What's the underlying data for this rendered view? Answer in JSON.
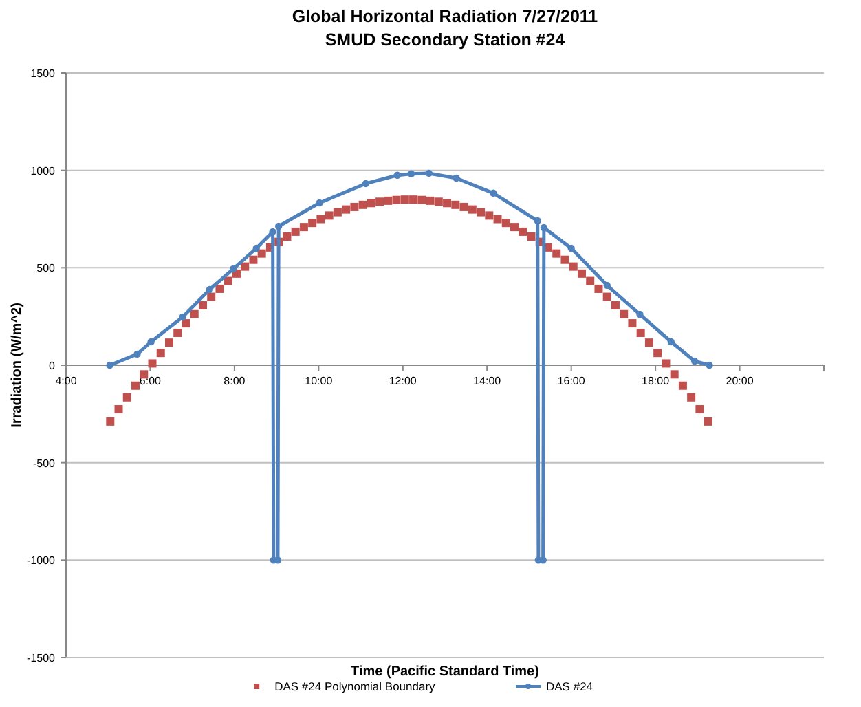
{
  "chart_data": {
    "type": "line",
    "title": "Global Horizontal Radiation 7/27/2011",
    "subtitle": "SMUD Secondary Station #24",
    "xlabel": "Time (Pacific Standard Time)",
    "ylabel": "Irradiation (W/m^2)",
    "xlim": [
      4,
      22
    ],
    "xticks": [
      {
        "value": 4,
        "label": "4:00"
      },
      {
        "value": 6,
        "label": "6:00"
      },
      {
        "value": 8,
        "label": "8:00"
      },
      {
        "value": 10,
        "label": "10:00"
      },
      {
        "value": 12,
        "label": "12:00"
      },
      {
        "value": 14,
        "label": "14:00"
      },
      {
        "value": 16,
        "label": "16:00"
      },
      {
        "value": 18,
        "label": "18:00"
      },
      {
        "value": 20,
        "label": "20:00"
      },
      {
        "value": 22,
        "label": null
      }
    ],
    "ylim": [
      -1500,
      1500
    ],
    "yticks": [
      -1500,
      -1000,
      -500,
      0,
      500,
      1000,
      1500
    ],
    "grid": "y",
    "legend": "bottom",
    "series": [
      {
        "name": "DAS #24 Polynomial Boundary",
        "type": "scatter",
        "marker": "square",
        "color": "#c0504d",
        "x": [
          5.05,
          5.25,
          5.45,
          5.65,
          5.85,
          6.05,
          6.25,
          6.45,
          6.65,
          6.85,
          7.05,
          7.25,
          7.45,
          7.65,
          7.85,
          8.05,
          8.25,
          8.45,
          8.65,
          8.85,
          9.05,
          9.25,
          9.45,
          9.65,
          9.85,
          10.05,
          10.25,
          10.45,
          10.65,
          10.85,
          11.05,
          11.25,
          11.45,
          11.65,
          11.85,
          12.05,
          12.25,
          12.45,
          12.65,
          12.85,
          13.05,
          13.25,
          13.45,
          13.65,
          13.85,
          14.05,
          14.25,
          14.45,
          14.65,
          14.85,
          15.05,
          15.25,
          15.45,
          15.65,
          15.85,
          16.05,
          16.25,
          16.45,
          16.65,
          16.85,
          17.05,
          17.25,
          17.45,
          17.65,
          17.85,
          18.05,
          18.25,
          18.45,
          18.65,
          18.85,
          19.05,
          19.25
        ],
        "values": [
          -289,
          -226,
          -165,
          -105,
          -47,
          9,
          63,
          116,
          166,
          215,
          262,
          307,
          351,
          392,
          432,
          470,
          506,
          541,
          573,
          604,
          633,
          660,
          685,
          709,
          730,
          750,
          768,
          785,
          799,
          812,
          823,
          832,
          839,
          844,
          848,
          850,
          850,
          848,
          844,
          839,
          832,
          823,
          812,
          799,
          785,
          768,
          750,
          730,
          709,
          685,
          660,
          633,
          604,
          573,
          541,
          506,
          470,
          432,
          392,
          351,
          307,
          262,
          215,
          166,
          116,
          63,
          9,
          -47,
          -105,
          -165,
          -226,
          -289
        ]
      },
      {
        "name": "DAS #24",
        "type": "line",
        "marker": "circle",
        "color": "#4f81bd",
        "x": [
          5.04,
          5.69,
          6.02,
          6.77,
          7.41,
          7.97,
          8.52,
          8.91,
          8.93,
          9.03,
          9.05,
          10.02,
          11.12,
          11.87,
          12.2,
          12.62,
          13.27,
          14.15,
          15.2,
          15.22,
          15.33,
          15.35,
          16.0,
          16.85,
          17.63,
          18.37,
          18.93,
          19.28
        ],
        "values": [
          0,
          57,
          120,
          247,
          388,
          494,
          600,
          685,
          -1000,
          -1000,
          713,
          833,
          932,
          975,
          982,
          985,
          960,
          883,
          741,
          -1000,
          -1000,
          706,
          600,
          410,
          261,
          120,
          21,
          0
        ]
      }
    ]
  }
}
